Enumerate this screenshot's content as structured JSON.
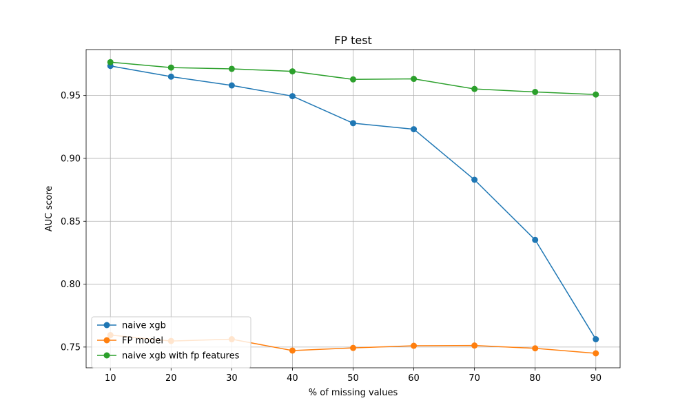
{
  "chart_data": {
    "type": "line",
    "title": "FP test",
    "xlabel": "% of missing values",
    "ylabel": "AUC score",
    "x": [
      10,
      20,
      30,
      40,
      50,
      60,
      70,
      80,
      90
    ],
    "xticks": [
      "10",
      "20",
      "30",
      "40",
      "50",
      "60",
      "70",
      "80",
      "90"
    ],
    "yticks": [
      "0.75",
      "0.80",
      "0.85",
      "0.90",
      "0.95"
    ],
    "xlim": [
      6,
      94
    ],
    "ylim": [
      0.7335,
      0.9865
    ],
    "grid": true,
    "legend_position": "lower-left",
    "series": [
      {
        "name": "naive xgb",
        "color": "#1f77b4",
        "values": [
          0.9735,
          0.965,
          0.958,
          0.9495,
          0.928,
          0.9232,
          0.883,
          0.8352,
          0.7562
        ]
      },
      {
        "name": "FP model",
        "color": "#ff7f0e",
        "values": [
          0.7595,
          0.7548,
          0.7562,
          0.7472,
          0.7493,
          0.751,
          0.7512,
          0.749,
          0.745
        ]
      },
      {
        "name": "naive xgb with fp features",
        "color": "#2ca02c",
        "values": [
          0.9765,
          0.9722,
          0.9712,
          0.9692,
          0.9628,
          0.9632,
          0.9552,
          0.9528,
          0.9508
        ]
      }
    ]
  }
}
